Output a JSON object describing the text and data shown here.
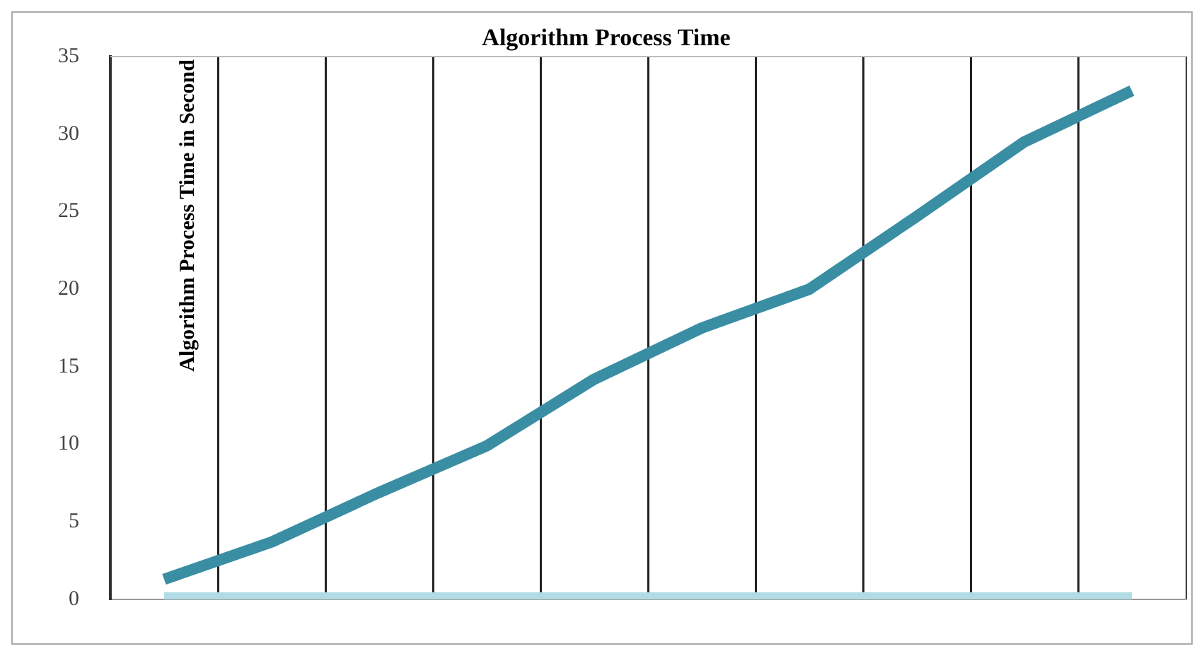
{
  "chart_data": {
    "type": "line",
    "title": "Algorithm Process Time",
    "ylabel": "Algorithm Process Time in Second",
    "categories": [
      null,
      null,
      null,
      null,
      null,
      null,
      null,
      null,
      null,
      null
    ],
    "series": [
      {
        "color": "#3a8ea3",
        "values": [
          1.3,
          3.7,
          6.9,
          9.9,
          14.2,
          17.5,
          20.0,
          24.7,
          29.5,
          32.8
        ]
      },
      {
        "color": "#b1dce6",
        "values": [
          0.1,
          0.1,
          0.1,
          0.1,
          0.1,
          0.1,
          0.1,
          0.1,
          0.1,
          0.1
        ]
      }
    ],
    "ylim": [
      0,
      35
    ],
    "yticks": [
      0,
      5,
      10,
      15,
      20,
      25,
      30,
      35
    ],
    "grid": "x",
    "legend": false,
    "marker": "none",
    "line_style": "solid"
  }
}
